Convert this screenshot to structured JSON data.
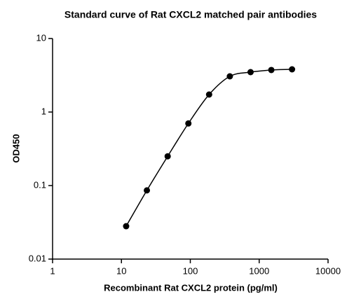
{
  "chart_data": {
    "type": "scatter",
    "title": "Standard curve of Rat CXCL2 matched pair antibodies",
    "x_label": "Recombinant Rat CXCL2 protein (pg/ml)",
    "y_label": "OD450",
    "x": [
      11.7,
      23.4,
      46.9,
      93.75,
      187.5,
      375,
      750,
      1500,
      3000
    ],
    "values": [
      0.028,
      0.086,
      0.25,
      0.7,
      1.73,
      3.06,
      3.49,
      3.73,
      3.81
    ],
    "color": "#000000",
    "connect_with_curve": true,
    "x_log": true,
    "y_log": true,
    "xlim": [
      1,
      10000
    ],
    "xticks": [
      1,
      10,
      100,
      1000,
      10000
    ],
    "ylim": [
      0.01,
      10
    ],
    "yticks": [
      0.01,
      0.1,
      1,
      10
    ]
  }
}
